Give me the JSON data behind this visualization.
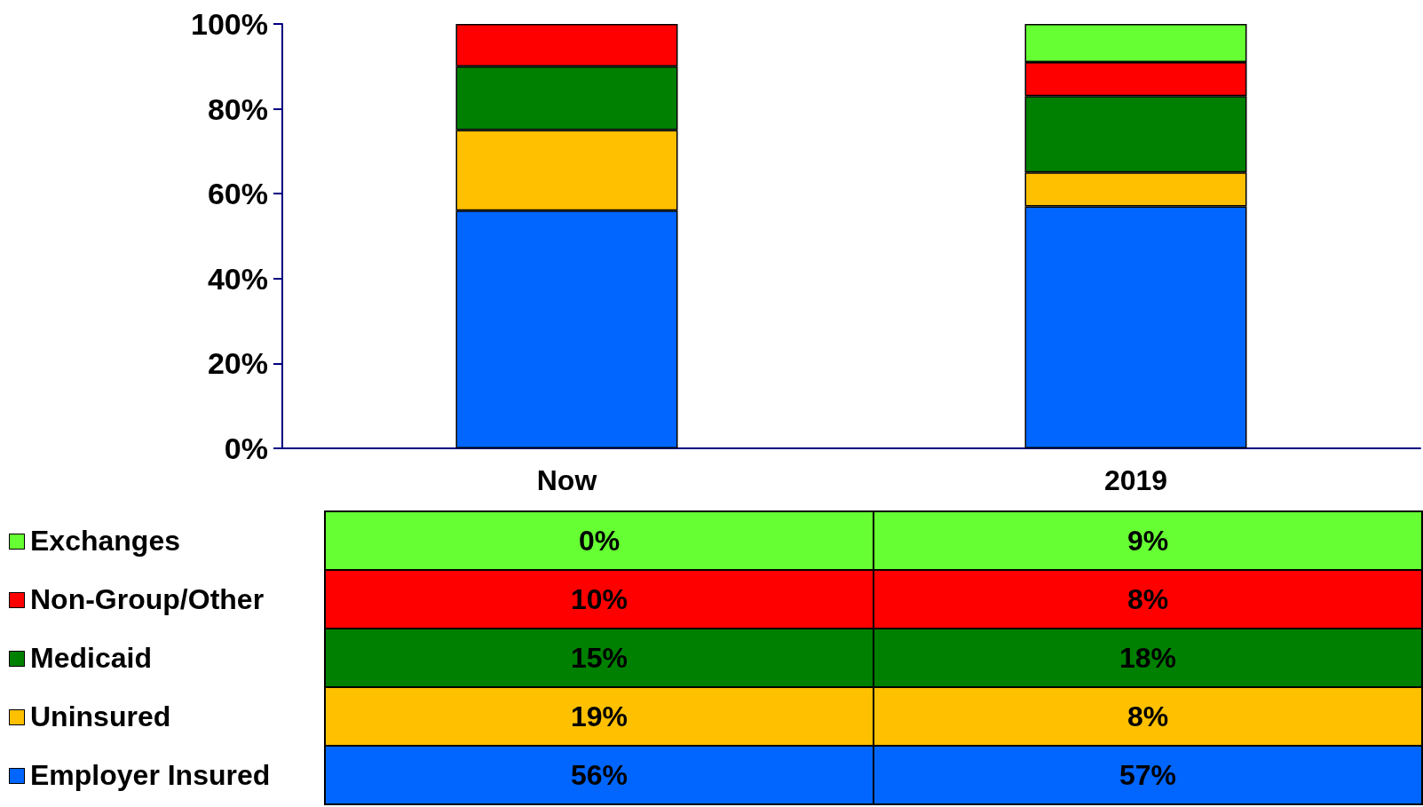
{
  "chart_data": {
    "type": "bar",
    "stacked": true,
    "data_labels": true,
    "grid": false,
    "legend": "bottom left",
    "categories": [
      "Now",
      "2019"
    ],
    "ylim": [
      0,
      100
    ],
    "yticks": [
      {
        "value": 0,
        "label": "0%"
      },
      {
        "value": 20,
        "label": "20%"
      },
      {
        "value": 40,
        "label": "40%"
      },
      {
        "value": 60,
        "label": "60%"
      },
      {
        "value": 80,
        "label": "80%"
      },
      {
        "value": 100,
        "label": "100%"
      }
    ],
    "series": [
      {
        "name": "Employer Insured",
        "color": "#0066ff",
        "values": [
          56,
          57
        ],
        "value_labels": [
          "56%",
          "57%"
        ]
      },
      {
        "name": "Uninsured",
        "color": "#ffc000",
        "values": [
          19,
          8
        ],
        "value_labels": [
          "19%",
          "8%"
        ]
      },
      {
        "name": "Medicaid",
        "color": "#008000",
        "values": [
          15,
          18
        ],
        "value_labels": [
          "15%",
          "18%"
        ]
      },
      {
        "name": "Non-Group/Other",
        "color": "#ff0000",
        "values": [
          10,
          8
        ],
        "value_labels": [
          "10%",
          "8%"
        ]
      },
      {
        "name": "Exchanges",
        "color": "#66ff33",
        "values": [
          0,
          9
        ],
        "value_labels": [
          "0%",
          "9%"
        ]
      }
    ]
  }
}
